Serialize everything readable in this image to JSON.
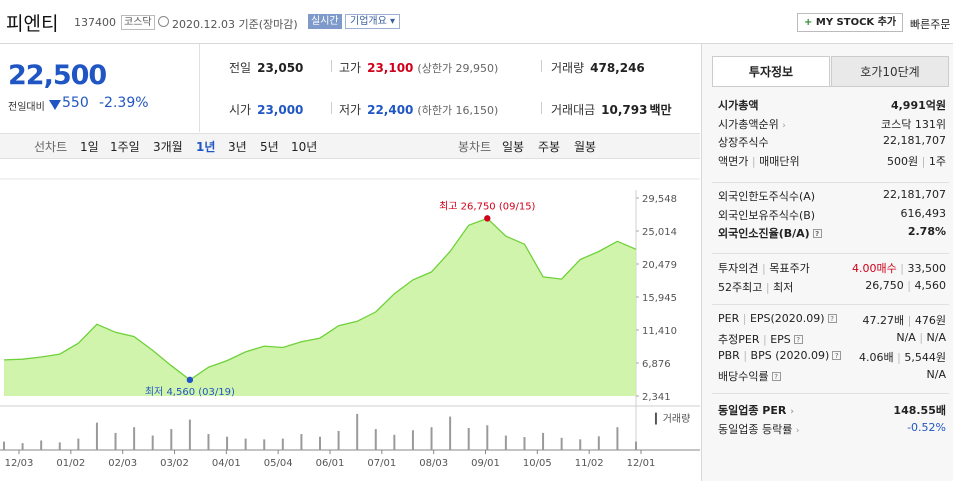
{
  "header": {
    "stock_name": "피엔티",
    "stock_code": "137400",
    "market": "코스닥",
    "date_text": "2020.12.03  기준(장마감)",
    "realtime_label": "실시간",
    "company_info_label": "기업개요 ▾",
    "mystock_label": "MY STOCK 추가",
    "quick_order_label": "빠른주문"
  },
  "quote": {
    "price": "22,500",
    "change_label": "전일대비",
    "change": "550",
    "change_pct": "-2.39%",
    "prev_close_label": "전일",
    "prev_close": "23,050",
    "high_label": "고가",
    "high": "23,100",
    "upper_limit": "(상한가 29,950)",
    "volume_label": "거래량",
    "volume": "478,246",
    "open_label": "시가",
    "open": "23,000",
    "low_label": "저가",
    "low": "22,400",
    "lower_limit": "(하한가 16,150)",
    "amount_label": "거래대금",
    "amount": "10,793",
    "amount_unit": "백만"
  },
  "period_tabs": {
    "line_label": "선차트",
    "line_items": [
      "1일",
      "1주일",
      "3개월",
      "1년",
      "3년",
      "5년",
      "10년"
    ],
    "active": "1년",
    "candle_label": "봉차트",
    "candle_items": [
      "일봉",
      "주봉",
      "월봉"
    ]
  },
  "colors": {
    "accent_blue": "#2056c4",
    "up_red": "#d0021b",
    "chart_line": "#6fd13a",
    "chart_fill": "#c9f29f"
  },
  "chart_data": {
    "type": "area",
    "title": "",
    "x_ticks": [
      "12/03",
      "01/02",
      "02/03",
      "03/02",
      "04/01",
      "05/04",
      "06/01",
      "07/01",
      "08/03",
      "09/01",
      "10/05",
      "11/02",
      "12/01"
    ],
    "y_ticks": [
      29548,
      25014,
      20479,
      15945,
      11410,
      6876,
      2341
    ],
    "ylim": [
      2341,
      29548
    ],
    "x": [
      "12/03",
      "12/17",
      "01/02",
      "01/16",
      "01/31",
      "02/14",
      "02/21",
      "03/02",
      "03/09",
      "03/16",
      "03/19",
      "03/26",
      "04/01",
      "04/15",
      "04/29",
      "05/04",
      "05/18",
      "06/01",
      "06/15",
      "07/01",
      "07/15",
      "08/03",
      "08/17",
      "08/28",
      "09/01",
      "09/08",
      "09/15",
      "09/22",
      "10/05",
      "10/19",
      "10/23",
      "11/02",
      "11/16",
      "12/01",
      "12/03"
    ],
    "values": [
      7300,
      7400,
      7700,
      8100,
      9600,
      12200,
      11100,
      10500,
      8600,
      6500,
      4560,
      6300,
      7200,
      8400,
      9200,
      9000,
      9800,
      10300,
      12000,
      12600,
      13900,
      16400,
      18300,
      19400,
      22200,
      25800,
      26750,
      24300,
      23200,
      18700,
      18400,
      21100,
      22200,
      23600,
      22500
    ],
    "high": {
      "label": "최고 26,750 (09/15)",
      "value": 26750,
      "date": "09/15"
    },
    "low": {
      "label": "최저 4,560 (03/19)",
      "value": 4560,
      "date": "03/19"
    },
    "volume_label": "거래량",
    "volume": [
      0.22,
      0.18,
      0.25,
      0.2,
      0.3,
      0.72,
      0.45,
      0.6,
      0.38,
      0.55,
      0.8,
      0.42,
      0.35,
      0.3,
      0.28,
      0.3,
      0.42,
      0.35,
      0.5,
      0.95,
      0.55,
      0.4,
      0.52,
      0.6,
      0.88,
      0.58,
      0.65,
      0.38,
      0.34,
      0.45,
      0.32,
      0.28,
      0.36,
      0.6,
      0.22
    ],
    "grid": false,
    "legend": "none"
  },
  "invest_info": {
    "tab_active": "투자정보",
    "tab_other": "호가10단계",
    "rows_a": [
      {
        "k": "시가총액",
        "v": "4,991억원",
        "bold": true
      },
      {
        "k": "시가총액순위",
        "v": "코스닥 131위",
        "arrow": true
      },
      {
        "k": "상장주식수",
        "v": "22,181,707"
      },
      {
        "k": "액면가",
        "k2": "매매단위",
        "v": "500원",
        "v2": "1주"
      }
    ],
    "rows_b": [
      {
        "k": "외국인한도주식수(A)",
        "v": "22,181,707"
      },
      {
        "k": "외국인보유주식수(B)",
        "v": "616,493"
      },
      {
        "k": "외국인소진율(B/A)",
        "v": "2.78%",
        "bold": true,
        "tip": true
      }
    ],
    "rows_c": [
      {
        "k": "투자의견",
        "k2": "목표주가",
        "v": "4.00매수",
        "v2": "33,500"
      },
      {
        "k": "52주최고",
        "k2": "최저",
        "v": "26,750",
        "v2": "4,560"
      }
    ],
    "rows_d": [
      {
        "k": "PER",
        "k2": "EPS(2020.09)",
        "v": "47.27배",
        "v2": "476원",
        "tip": true
      },
      {
        "k": "추정PER",
        "k2": "EPS",
        "v": "N/A",
        "v2": "N/A",
        "tip": true
      },
      {
        "k": "PBR",
        "k2": "BPS (2020.09)",
        "v": "4.06배",
        "v2": "5,544원",
        "tip": true
      },
      {
        "k": "배당수익률",
        "v": "N/A",
        "tip": true
      }
    ],
    "rows_e": [
      {
        "k": "동일업종 PER",
        "v": "148.55배",
        "bold": true,
        "arrow": true
      },
      {
        "k": "동일업종 등락률",
        "v": "-0.52%",
        "arrow": true,
        "blue": true
      }
    ]
  }
}
